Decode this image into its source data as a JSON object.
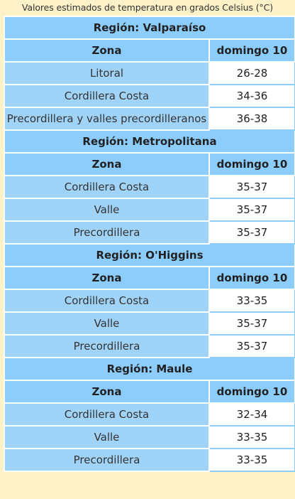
{
  "caption": "Valores estimados de temperatura en grados Celsius (°C)",
  "regions": [
    {
      "title": "Región: Valparaíso",
      "col_zone": "Zona",
      "col_day": "domingo 10",
      "rows": [
        {
          "zone": "Litoral",
          "temp": "26-28"
        },
        {
          "zone": "Cordillera Costa",
          "temp": "34-36"
        },
        {
          "zone": "Precordillera y valles precordilleranos",
          "temp": "36-38"
        }
      ]
    },
    {
      "title": "Región: Metropolitana",
      "col_zone": "Zona",
      "col_day": "domingo 10",
      "rows": [
        {
          "zone": "Cordillera Costa",
          "temp": "35-37"
        },
        {
          "zone": "Valle",
          "temp": "35-37"
        },
        {
          "zone": "Precordillera",
          "temp": "35-37"
        }
      ]
    },
    {
      "title": "Región: O'Higgins",
      "col_zone": "Zona",
      "col_day": "domingo 10",
      "rows": [
        {
          "zone": "Cordillera Costa",
          "temp": "33-35"
        },
        {
          "zone": "Valle",
          "temp": "35-37"
        },
        {
          "zone": "Precordillera",
          "temp": "35-37"
        }
      ]
    },
    {
      "title": "Región: Maule",
      "col_zone": "Zona",
      "col_day": "domingo 10",
      "rows": [
        {
          "zone": "Cordillera Costa",
          "temp": "32-34"
        },
        {
          "zone": "Valle",
          "temp": "33-35"
        },
        {
          "zone": "Precordillera",
          "temp": "33-35"
        }
      ]
    }
  ]
}
